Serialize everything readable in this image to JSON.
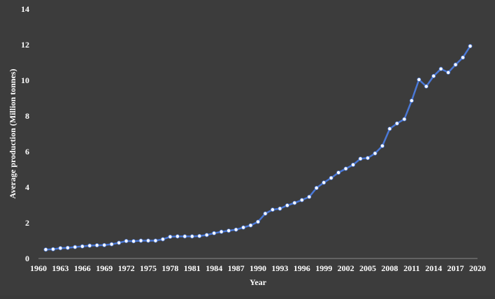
{
  "chart_data": {
    "type": "line",
    "title": "",
    "xlabel": "Year",
    "ylabel": "Average production (Million tonnes)",
    "xlim": [
      1960,
      2020
    ],
    "ylim": [
      0,
      14
    ],
    "xticks": [
      1960,
      1963,
      1966,
      1969,
      1972,
      1975,
      1978,
      1981,
      1984,
      1987,
      1990,
      1993,
      1996,
      1999,
      2002,
      2005,
      2008,
      2011,
      2014,
      2017,
      2020
    ],
    "yticks": [
      0,
      2,
      4,
      6,
      8,
      10,
      12,
      14
    ],
    "grid": false,
    "legend": "none",
    "line_color": "#4a78d6",
    "marker_color": "#ffffff",
    "series": [
      {
        "x": [
          1961,
          1962,
          1963,
          1964,
          1965,
          1966,
          1967,
          1968,
          1969,
          1970,
          1971,
          1972,
          1973,
          1974,
          1975,
          1976,
          1977,
          1978,
          1979,
          1980,
          1981,
          1982,
          1983,
          1984,
          1985,
          1986,
          1987,
          1988,
          1989,
          1990,
          1991,
          1992,
          1993,
          1994,
          1995,
          1996,
          1997,
          1998,
          1999,
          2000,
          2001,
          2002,
          2003,
          2004,
          2005,
          2006,
          2007,
          2008,
          2009,
          2010,
          2011,
          2012,
          2013,
          2014,
          2015,
          2016,
          2017,
          2018,
          2019
        ],
        "values": [
          0.5,
          0.52,
          0.58,
          0.6,
          0.64,
          0.68,
          0.72,
          0.74,
          0.75,
          0.8,
          0.88,
          0.98,
          0.97,
          1.0,
          1.0,
          1.0,
          1.08,
          1.22,
          1.24,
          1.24,
          1.24,
          1.26,
          1.32,
          1.42,
          1.5,
          1.56,
          1.62,
          1.74,
          1.86,
          2.06,
          2.52,
          2.74,
          2.8,
          2.98,
          3.12,
          3.28,
          3.46,
          3.96,
          4.26,
          4.52,
          4.82,
          5.04,
          5.26,
          5.6,
          5.64,
          5.9,
          6.32,
          7.28,
          7.58,
          7.82,
          8.86,
          10.04,
          9.66,
          10.24,
          10.64,
          10.44,
          10.88,
          11.28,
          11.92
        ]
      }
    ]
  }
}
